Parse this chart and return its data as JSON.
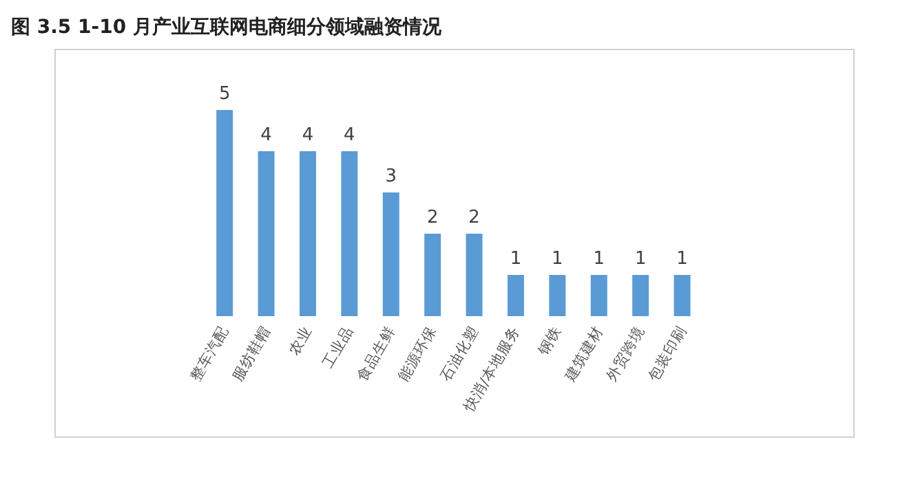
{
  "chart_data": {
    "type": "bar",
    "title": "图 3.5 1-10 月产业互联网电商细分领域融资情况",
    "categories": [
      "整车汽配",
      "服纺鞋帽",
      "农业",
      "工业品",
      "食品生鲜",
      "能源环保",
      "石油化塑",
      "快消/本地服务",
      "钢铁",
      "建筑建材",
      "外贸跨境",
      "包装印刷"
    ],
    "values": [
      5,
      4,
      4,
      4,
      3,
      2,
      2,
      1,
      1,
      1,
      1,
      1
    ],
    "color": "#5b9bd5",
    "data_labels": true
  }
}
